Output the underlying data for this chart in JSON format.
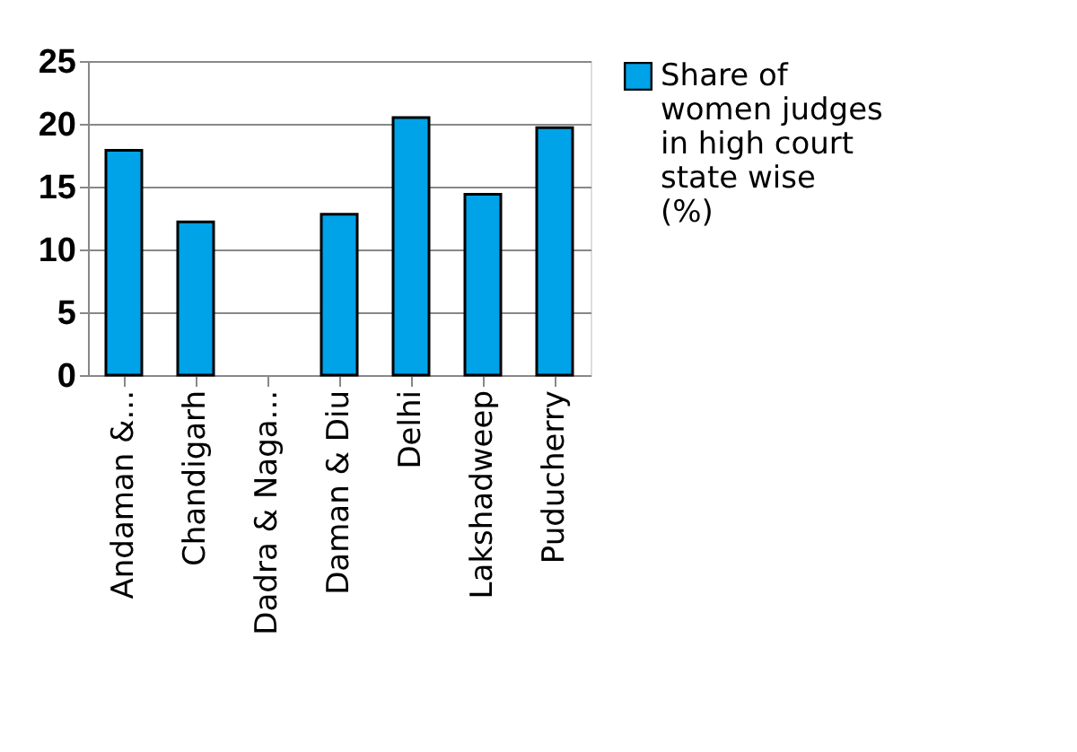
{
  "chart_data": {
    "type": "bar",
    "categories": [
      "Andaman &...",
      "Chandigarh",
      "Dadra & Naga...",
      "Daman & Diu",
      "Delhi",
      "Lakshadweep",
      "Puducherry"
    ],
    "series": [
      {
        "name": "Share of women judges in high court state wise (%)",
        "color": "#00a2e8",
        "values": [
          17.9,
          12.2,
          null,
          12.8,
          20.5,
          14.4,
          19.7
        ]
      }
    ],
    "ylim": [
      0,
      25
    ],
    "yticks": [
      0,
      5,
      10,
      15,
      20,
      25
    ],
    "grid": "y",
    "legend": "right"
  }
}
